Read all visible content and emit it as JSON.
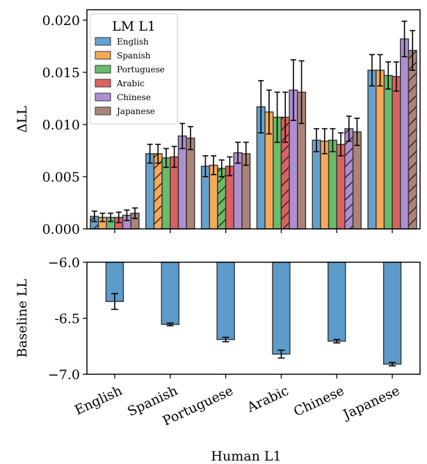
{
  "chart_data": [
    {
      "type": "bar",
      "ylabel": "ΔLL",
      "xlabel": "",
      "ylim": [
        0,
        0.021
      ],
      "yticks": [
        0.0,
        0.005,
        0.01,
        0.015,
        0.02
      ],
      "ytick_labels": [
        "0.000",
        "0.005",
        "0.010",
        "0.015",
        "0.020"
      ],
      "categories": [
        "English",
        "Spanish",
        "Portuguese",
        "Arabic",
        "Chinese",
        "Japanese"
      ],
      "legend": {
        "title": "LM L1",
        "position": "top-left"
      },
      "hatch_note": "bar is hatched where LM L1 equals Human L1",
      "series": [
        {
          "name": "English",
          "color": "#4a90c4",
          "values": [
            0.0012,
            0.0072,
            0.006,
            0.0117,
            0.0085,
            0.0152
          ],
          "errors": [
            0.0005,
            0.0009,
            0.001,
            0.0025,
            0.0011,
            0.0015
          ]
        },
        {
          "name": "Spanish",
          "color": "#f59a3c",
          "values": [
            0.0011,
            0.0072,
            0.0061,
            0.0112,
            0.0084,
            0.0152
          ],
          "errors": [
            0.0004,
            0.0009,
            0.0009,
            0.0021,
            0.0012,
            0.0015
          ]
        },
        {
          "name": "Portuguese",
          "color": "#4fb04f",
          "values": [
            0.0011,
            0.0068,
            0.0058,
            0.0107,
            0.0085,
            0.0147
          ],
          "errors": [
            0.0004,
            0.0009,
            0.0008,
            0.0024,
            0.0011,
            0.0013
          ]
        },
        {
          "name": "Arabic",
          "color": "#d64545",
          "values": [
            0.0011,
            0.0069,
            0.006,
            0.0107,
            0.0081,
            0.0146
          ],
          "errors": [
            0.0005,
            0.001,
            0.0009,
            0.0024,
            0.0011,
            0.0014
          ]
        },
        {
          "name": "Chinese",
          "color": "#a07bc8",
          "values": [
            0.0013,
            0.0089,
            0.0073,
            0.0133,
            0.0096,
            0.0182
          ],
          "errors": [
            0.0005,
            0.0012,
            0.001,
            0.0029,
            0.0012,
            0.0017
          ]
        },
        {
          "name": "Japanese",
          "color": "#9c6e60",
          "values": [
            0.0015,
            0.0087,
            0.0072,
            0.0131,
            0.0093,
            0.0171
          ],
          "errors": [
            0.0005,
            0.0011,
            0.0011,
            0.003,
            0.0013,
            0.0019
          ]
        }
      ]
    },
    {
      "type": "bar",
      "ylabel": "Baseline LL",
      "xlabel": "Human L1",
      "ylim": [
        -7.0,
        -6.0
      ],
      "yticks": [
        -6.0,
        -6.5,
        -7.0
      ],
      "ytick_labels": [
        "−6.0",
        "-6.5",
        "−7.0"
      ],
      "categories": [
        "English",
        "Spanish",
        "Portuguese",
        "Arabic",
        "Chinese",
        "Japanese"
      ],
      "color": "#4a90c4",
      "values": [
        -6.35,
        -6.555,
        -6.69,
        -6.82,
        -6.705,
        -6.91
      ],
      "errors": [
        0.07,
        0.012,
        0.02,
        0.035,
        0.015,
        0.015
      ]
    }
  ]
}
